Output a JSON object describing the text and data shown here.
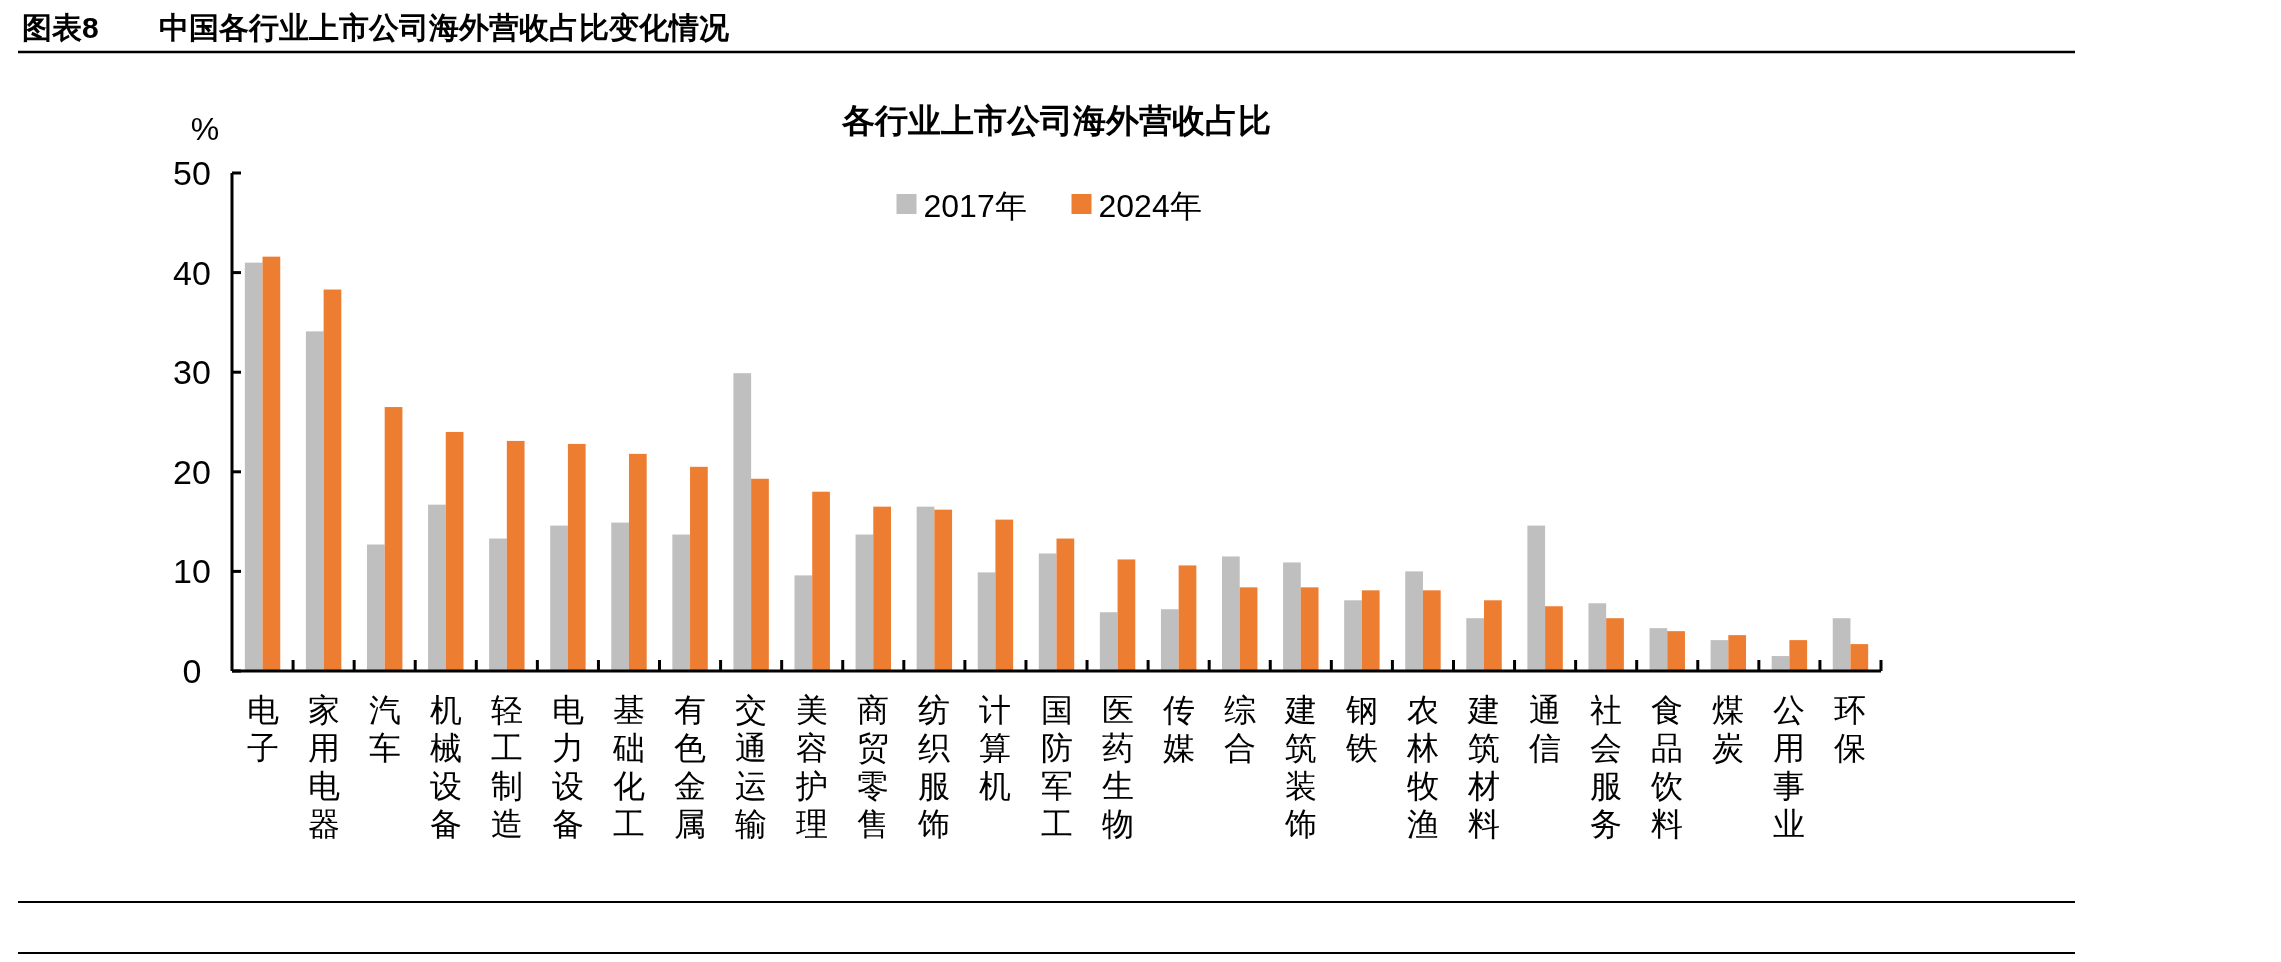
{
  "chart_data": {
    "type": "bar",
    "title": "各行业上市公司海外营收占比",
    "subtitle": "图表8　　中国各行业上市公司海外营收占比变化情况",
    "ylabel": "%",
    "categories": [
      "电子",
      "家用电器",
      "汽车",
      "机械设备",
      "轻工制造",
      "电力设备",
      "基础化工",
      "有色金属",
      "交通运输",
      "美容护理",
      "商贸零售",
      "纺织服饰",
      "计算机",
      "国防军工",
      "医药生物",
      "传媒",
      "综合",
      "建筑装饰",
      "钢铁",
      "农林牧渔",
      "建筑材料",
      "通信",
      "社会服务",
      "食品饮料",
      "煤炭",
      "公用事业",
      "环保"
    ],
    "series": [
      {
        "name": "2017年",
        "color": "#bfbfbf",
        "values": [
          41.0,
          34.1,
          12.7,
          16.7,
          13.3,
          14.6,
          14.9,
          13.7,
          29.9,
          9.6,
          13.7,
          16.5,
          9.9,
          11.8,
          5.9,
          6.2,
          11.5,
          10.9,
          7.1,
          10.0,
          5.3,
          14.6,
          6.8,
          4.3,
          3.1,
          1.5,
          5.3
        ]
      },
      {
        "name": "2024年",
        "color": "#ed7d31",
        "values": [
          41.6,
          38.3,
          26.5,
          24.0,
          23.1,
          22.8,
          21.8,
          20.5,
          19.3,
          18.0,
          16.5,
          16.2,
          15.2,
          13.3,
          11.2,
          10.6,
          8.4,
          8.4,
          8.1,
          8.1,
          7.1,
          6.5,
          5.3,
          4.0,
          3.6,
          3.1,
          2.7
        ]
      }
    ],
    "ylim": [
      0,
      50
    ],
    "yticks": [
      0,
      10,
      20,
      30,
      40,
      50
    ],
    "grid": false,
    "legend": "top"
  }
}
